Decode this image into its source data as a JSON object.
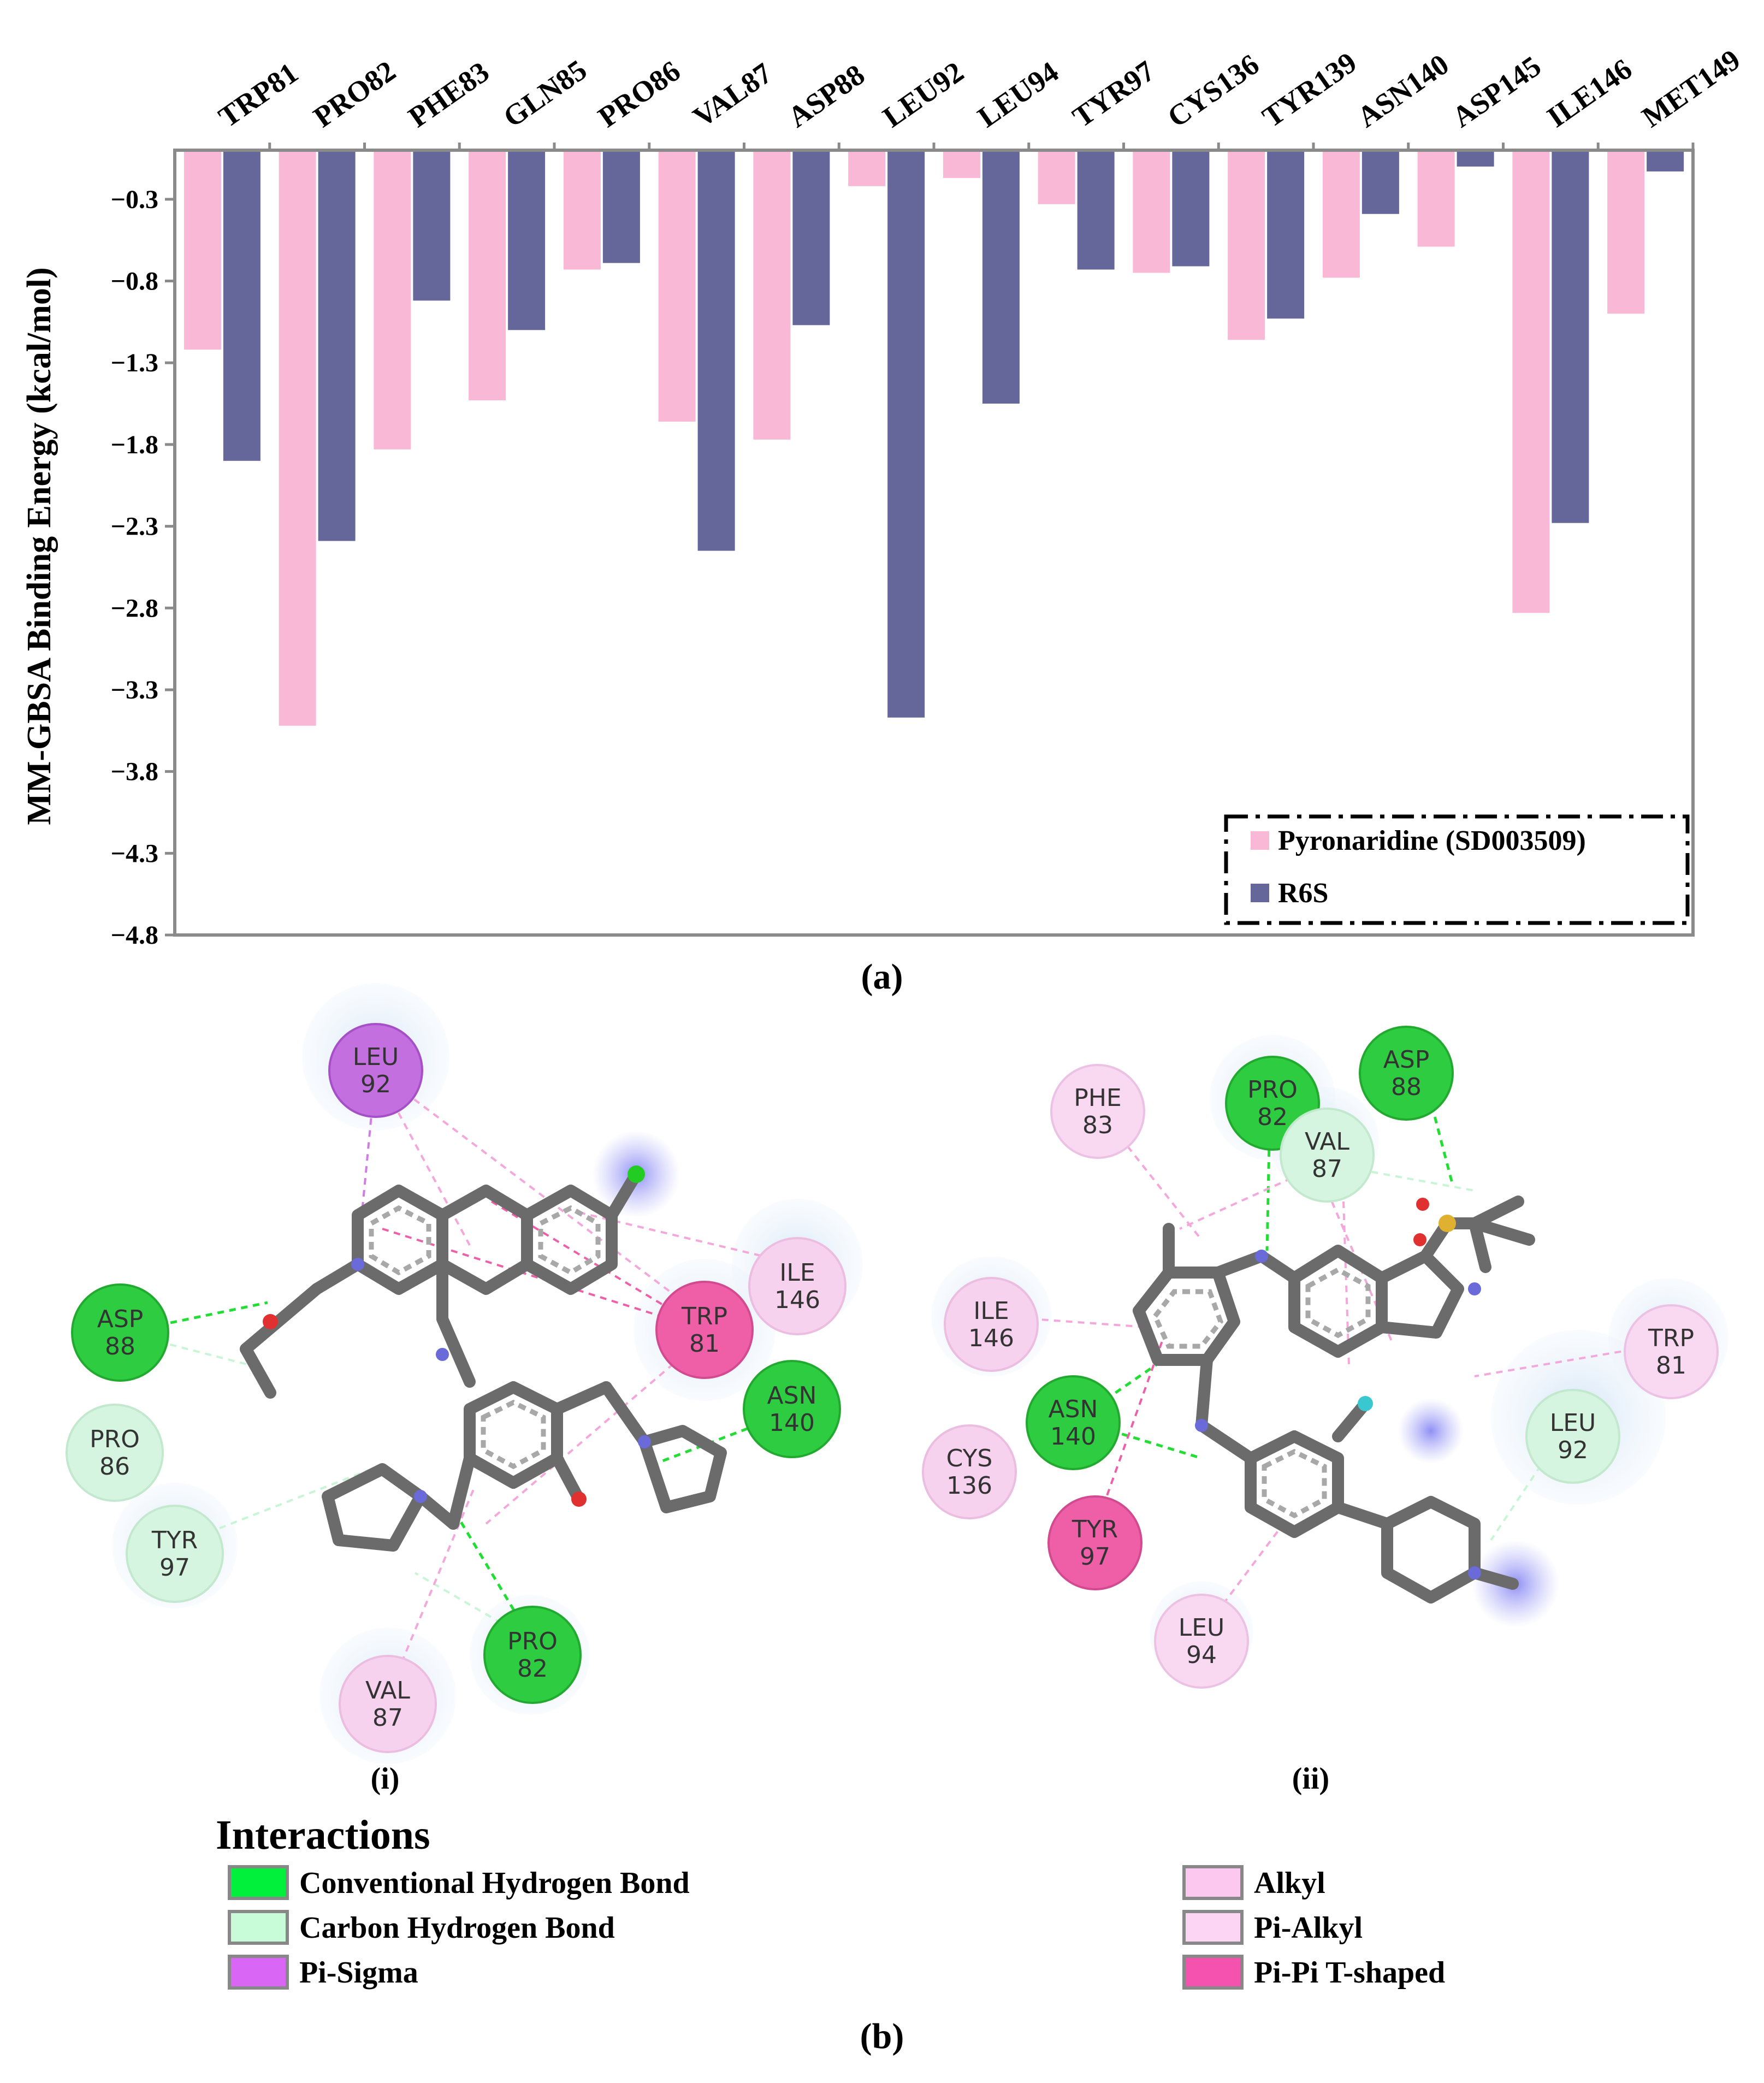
{
  "chart_data": {
    "type": "bar",
    "categories": [
      "TRP81",
      "PRO82",
      "PHE83",
      "GLN85",
      "PRO86",
      "VAL87",
      "ASP88",
      "LEU92",
      "LEU94",
      "TYR97",
      "CYS136",
      "TYR139",
      "ASN140",
      "ASP145",
      "ILE146",
      "MET149"
    ],
    "series": [
      {
        "name": "Pyronaridine (SD003509)",
        "color": "#F9B8D6",
        "values": [
          -1.22,
          -3.52,
          -1.83,
          -1.53,
          -0.73,
          -1.66,
          -1.77,
          -0.22,
          -0.17,
          -0.33,
          -0.75,
          -1.16,
          -0.78,
          -0.59,
          -2.83,
          -1.0
        ]
      },
      {
        "name": "R6S",
        "color": "#656699",
        "values": [
          -1.9,
          -2.39,
          -0.92,
          -1.1,
          -0.69,
          -2.45,
          -1.07,
          -3.47,
          -1.55,
          -0.73,
          -0.71,
          -1.03,
          -0.39,
          -0.1,
          -2.28,
          -0.13
        ]
      }
    ],
    "yticks": [
      "-0.3",
      "-0.8",
      "-1.3",
      "-1.8",
      "-2.3",
      "-2.8",
      "-3.3",
      "-3.8",
      "-4.3",
      "-4.8"
    ],
    "ylim": [
      -4.8,
      0.0
    ],
    "ylabel": "MM-GBSA Binding Energy (kcal/mol)",
    "xlabel": "",
    "legend_position": "bottom-right",
    "title": ""
  },
  "labels": {
    "panel_a": "(a)",
    "panel_b": "(b)",
    "sub_i": "(i)",
    "sub_ii": "(ii)"
  },
  "diagram_i": {
    "residues": [
      {
        "id": "leu92",
        "name": "LEU",
        "num": "92",
        "type": "pi-sigma"
      },
      {
        "id": "asp88",
        "name": "ASP",
        "num": "88",
        "type": "conventional-h-bond"
      },
      {
        "id": "pro86",
        "name": "PRO",
        "num": "86",
        "type": "carbon-h-bond"
      },
      {
        "id": "tyr97",
        "name": "TYR",
        "num": "97",
        "type": "carbon-h-bond"
      },
      {
        "id": "trp81",
        "name": "TRP",
        "num": "81",
        "type": "pi-pi-t-shaped"
      },
      {
        "id": "ile146",
        "name": "ILE",
        "num": "146",
        "type": "alkyl"
      },
      {
        "id": "asn140",
        "name": "ASN",
        "num": "140",
        "type": "conventional-h-bond"
      },
      {
        "id": "pro82",
        "name": "PRO",
        "num": "82",
        "type": "conventional-h-bond"
      },
      {
        "id": "val87",
        "name": "VAL",
        "num": "87",
        "type": "alkyl"
      }
    ]
  },
  "diagram_ii": {
    "residues": [
      {
        "id": "phe83",
        "name": "PHE",
        "num": "83",
        "type": "pi-alkyl"
      },
      {
        "id": "pro82",
        "name": "PRO",
        "num": "82",
        "type": "conventional-h-bond"
      },
      {
        "id": "asp88",
        "name": "ASP",
        "num": "88",
        "type": "conventional-h-bond"
      },
      {
        "id": "val87",
        "name": "VAL",
        "num": "87",
        "type": "carbon-h-bond"
      },
      {
        "id": "ile146",
        "name": "ILE",
        "num": "146",
        "type": "alkyl"
      },
      {
        "id": "trp81",
        "name": "TRP",
        "num": "81",
        "type": "pi-alkyl"
      },
      {
        "id": "leu92",
        "name": "LEU",
        "num": "92",
        "type": "carbon-h-bond"
      },
      {
        "id": "asn140",
        "name": "ASN",
        "num": "140",
        "type": "conventional-h-bond"
      },
      {
        "id": "cys136",
        "name": "CYS",
        "num": "136",
        "type": "alkyl"
      },
      {
        "id": "tyr97",
        "name": "TYR",
        "num": "97",
        "type": "pi-pi-t-shaped"
      },
      {
        "id": "leu94",
        "name": "LEU",
        "num": "94",
        "type": "pi-alkyl"
      }
    ]
  },
  "interactions_legend": {
    "title": "Interactions",
    "items": [
      {
        "label": "Conventional Hydrogen Bond",
        "color": "#00F03C"
      },
      {
        "label": "Carbon Hydrogen Bond",
        "color": "#C8FCD8"
      },
      {
        "label": "Pi-Sigma",
        "color": "#D966F5"
      },
      {
        "label": "Alkyl",
        "color": "#FDC8F0"
      },
      {
        "label": "Pi-Alkyl",
        "color": "#FCD4F4"
      },
      {
        "label": "Pi-Pi T-shaped",
        "color": "#F551AE"
      }
    ]
  },
  "residue_colors": {
    "conventional-h-bond": "#2ECC40",
    "carbon-h-bond": "#D6F5E0",
    "pi-sigma": "#C36FE0",
    "alkyl": "#F7D2EE",
    "pi-alkyl": "#F9D8F2",
    "pi-pi-t-shaped": "#EE5FA8"
  }
}
